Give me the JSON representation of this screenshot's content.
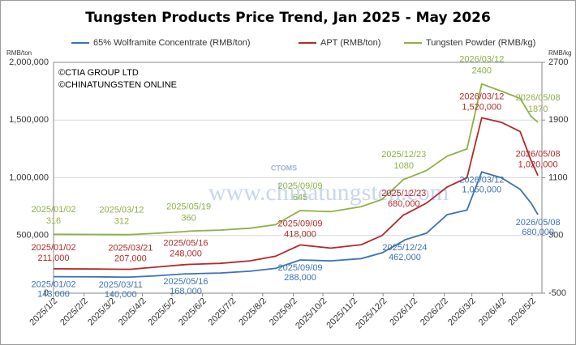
{
  "chart_data": {
    "type": "line",
    "title": "Tungsten Products Price Trend, Jan 2025 - May 2026",
    "ylabel": "RMB/ton",
    "y2label": "RMB/kg",
    "notes": [
      "©CTIA GROUP LTD",
      "©CHINATUNGSTEN ONLINE"
    ],
    "watermark": [
      "www.chinatungsten.com",
      "CTOMS"
    ],
    "grid": true,
    "x": [
      "2025-01-02",
      "2025-02-15",
      "2025-03-12",
      "2025-03-21",
      "2025-04-15",
      "2025-05-16",
      "2025-05-19",
      "2025-06-20",
      "2025-07-20",
      "2025-08-15",
      "2025-09-09",
      "2025-10-10",
      "2025-11-10",
      "2025-12-01",
      "2025-12-23",
      "2025-12-24",
      "2026-01-15",
      "2026-02-05",
      "2026-02-25",
      "2026-03-12",
      "2026-04-01",
      "2026-04-20",
      "2026-05-01",
      "2026-05-08"
    ],
    "xlim": [
      "2025-01-02",
      "2026-05-12"
    ],
    "xticks": [
      {
        "value": "2025-01-02",
        "label": "2025/1/2"
      },
      {
        "value": "2025-02-02",
        "label": "2025/2/2"
      },
      {
        "value": "2025-03-02",
        "label": "2025/3/2"
      },
      {
        "value": "2025-04-02",
        "label": "2025/4/2"
      },
      {
        "value": "2025-05-02",
        "label": "2025/5/2"
      },
      {
        "value": "2025-06-02",
        "label": "2025/6/2"
      },
      {
        "value": "2025-07-02",
        "label": "2025/7/2"
      },
      {
        "value": "2025-08-02",
        "label": "2025/8/2"
      },
      {
        "value": "2025-09-02",
        "label": "2025/9/2"
      },
      {
        "value": "2025-10-02",
        "label": "2025/10/2"
      },
      {
        "value": "2025-11-02",
        "label": "2025/11/2"
      },
      {
        "value": "2025-12-02",
        "label": "2025/12/2"
      },
      {
        "value": "2026-01-02",
        "label": "2026/1/2"
      },
      {
        "value": "2026-02-02",
        "label": "2026/2/2"
      },
      {
        "value": "2026-03-02",
        "label": "2026/3/2"
      },
      {
        "value": "2026-04-02",
        "label": "2026/4/2"
      },
      {
        "value": "2026-05-02",
        "label": "2026/5/2"
      }
    ],
    "ylim": [
      0,
      2000000
    ],
    "yticks": [
      0,
      {
        "value": 500000,
        "label": "500,000"
      },
      {
        "value": 1000000,
        "label": "1,000,000"
      },
      {
        "value": 1500000,
        "label": "1,500,000"
      },
      {
        "value": 2000000,
        "label": "2,000,000"
      }
    ],
    "y2lim": [
      -500,
      2700
    ],
    "y2ticks": [
      -500,
      300,
      1100,
      1900,
      2700
    ],
    "series": [
      {
        "name": "65% Wolframite Concentrate (RMB/ton)",
        "color": "#3e72b0",
        "values": [
          143000,
          141000,
          140000,
          140000,
          150000,
          168000,
          168000,
          175000,
          190000,
          215000,
          288000,
          280000,
          300000,
          350000,
          455000,
          462000,
          520000,
          680000,
          720000,
          1050000,
          1000000,
          900000,
          780000,
          680000
        ],
        "annotations": [
          {
            "date": "2025/01/02",
            "label": "143,000"
          },
          {
            "date": "2025/03/11",
            "label": "140,000"
          },
          {
            "date": "2025/05/16",
            "label": "168,000"
          },
          {
            "date": "2025/09/09",
            "label": "288,000"
          },
          {
            "date": "2025/12/24",
            "label": "462,000"
          },
          {
            "date": "2026/03/12",
            "label": "1,050,000"
          },
          {
            "date": "2026/05/08",
            "label": "680,000"
          }
        ]
      },
      {
        "name": "APT (RMB/ton)",
        "color": "#b22a2a",
        "values": [
          211000,
          209000,
          207000,
          207000,
          225000,
          248000,
          249000,
          258000,
          280000,
          320000,
          418000,
          390000,
          420000,
          500000,
          680000,
          682000,
          780000,
          920000,
          1000000,
          1520000,
          1480000,
          1400000,
          1150000,
          1020000
        ],
        "annotations": [
          {
            "date": "2025/01/02",
            "label": "211,000"
          },
          {
            "date": "2025/03/21",
            "label": "207,000"
          },
          {
            "date": "2025/05/16",
            "label": "248,000"
          },
          {
            "date": "2025/09/09",
            "label": "418,000"
          },
          {
            "date": "2025/12/23",
            "label": "680,000"
          },
          {
            "date": "2026/03/12",
            "label": "1,520,000"
          },
          {
            "date": "2026/05/08",
            "label": "1,020,000"
          }
        ]
      },
      {
        "name": "Tungsten Powder (RMB/kg)",
        "color": "#8db044",
        "axis": "y2",
        "values": [
          316,
          314,
          312,
          313,
          330,
          355,
          360,
          375,
          400,
          450,
          645,
          630,
          700,
          800,
          1080,
          1082,
          1200,
          1400,
          1500,
          2400,
          2300,
          2200,
          1950,
          1870
        ],
        "annotations": [
          {
            "date": "2025/01/02",
            "label": "316"
          },
          {
            "date": "2025/03/12",
            "label": "312"
          },
          {
            "date": "2025/05/19",
            "label": "360"
          },
          {
            "date": "2025/09/09",
            "label": "645"
          },
          {
            "date": "2025/12/23",
            "label": "1080"
          },
          {
            "date": "2026/03/12",
            "label": "2400"
          },
          {
            "date": "2026/05/08",
            "label": "1870"
          }
        ]
      }
    ]
  }
}
